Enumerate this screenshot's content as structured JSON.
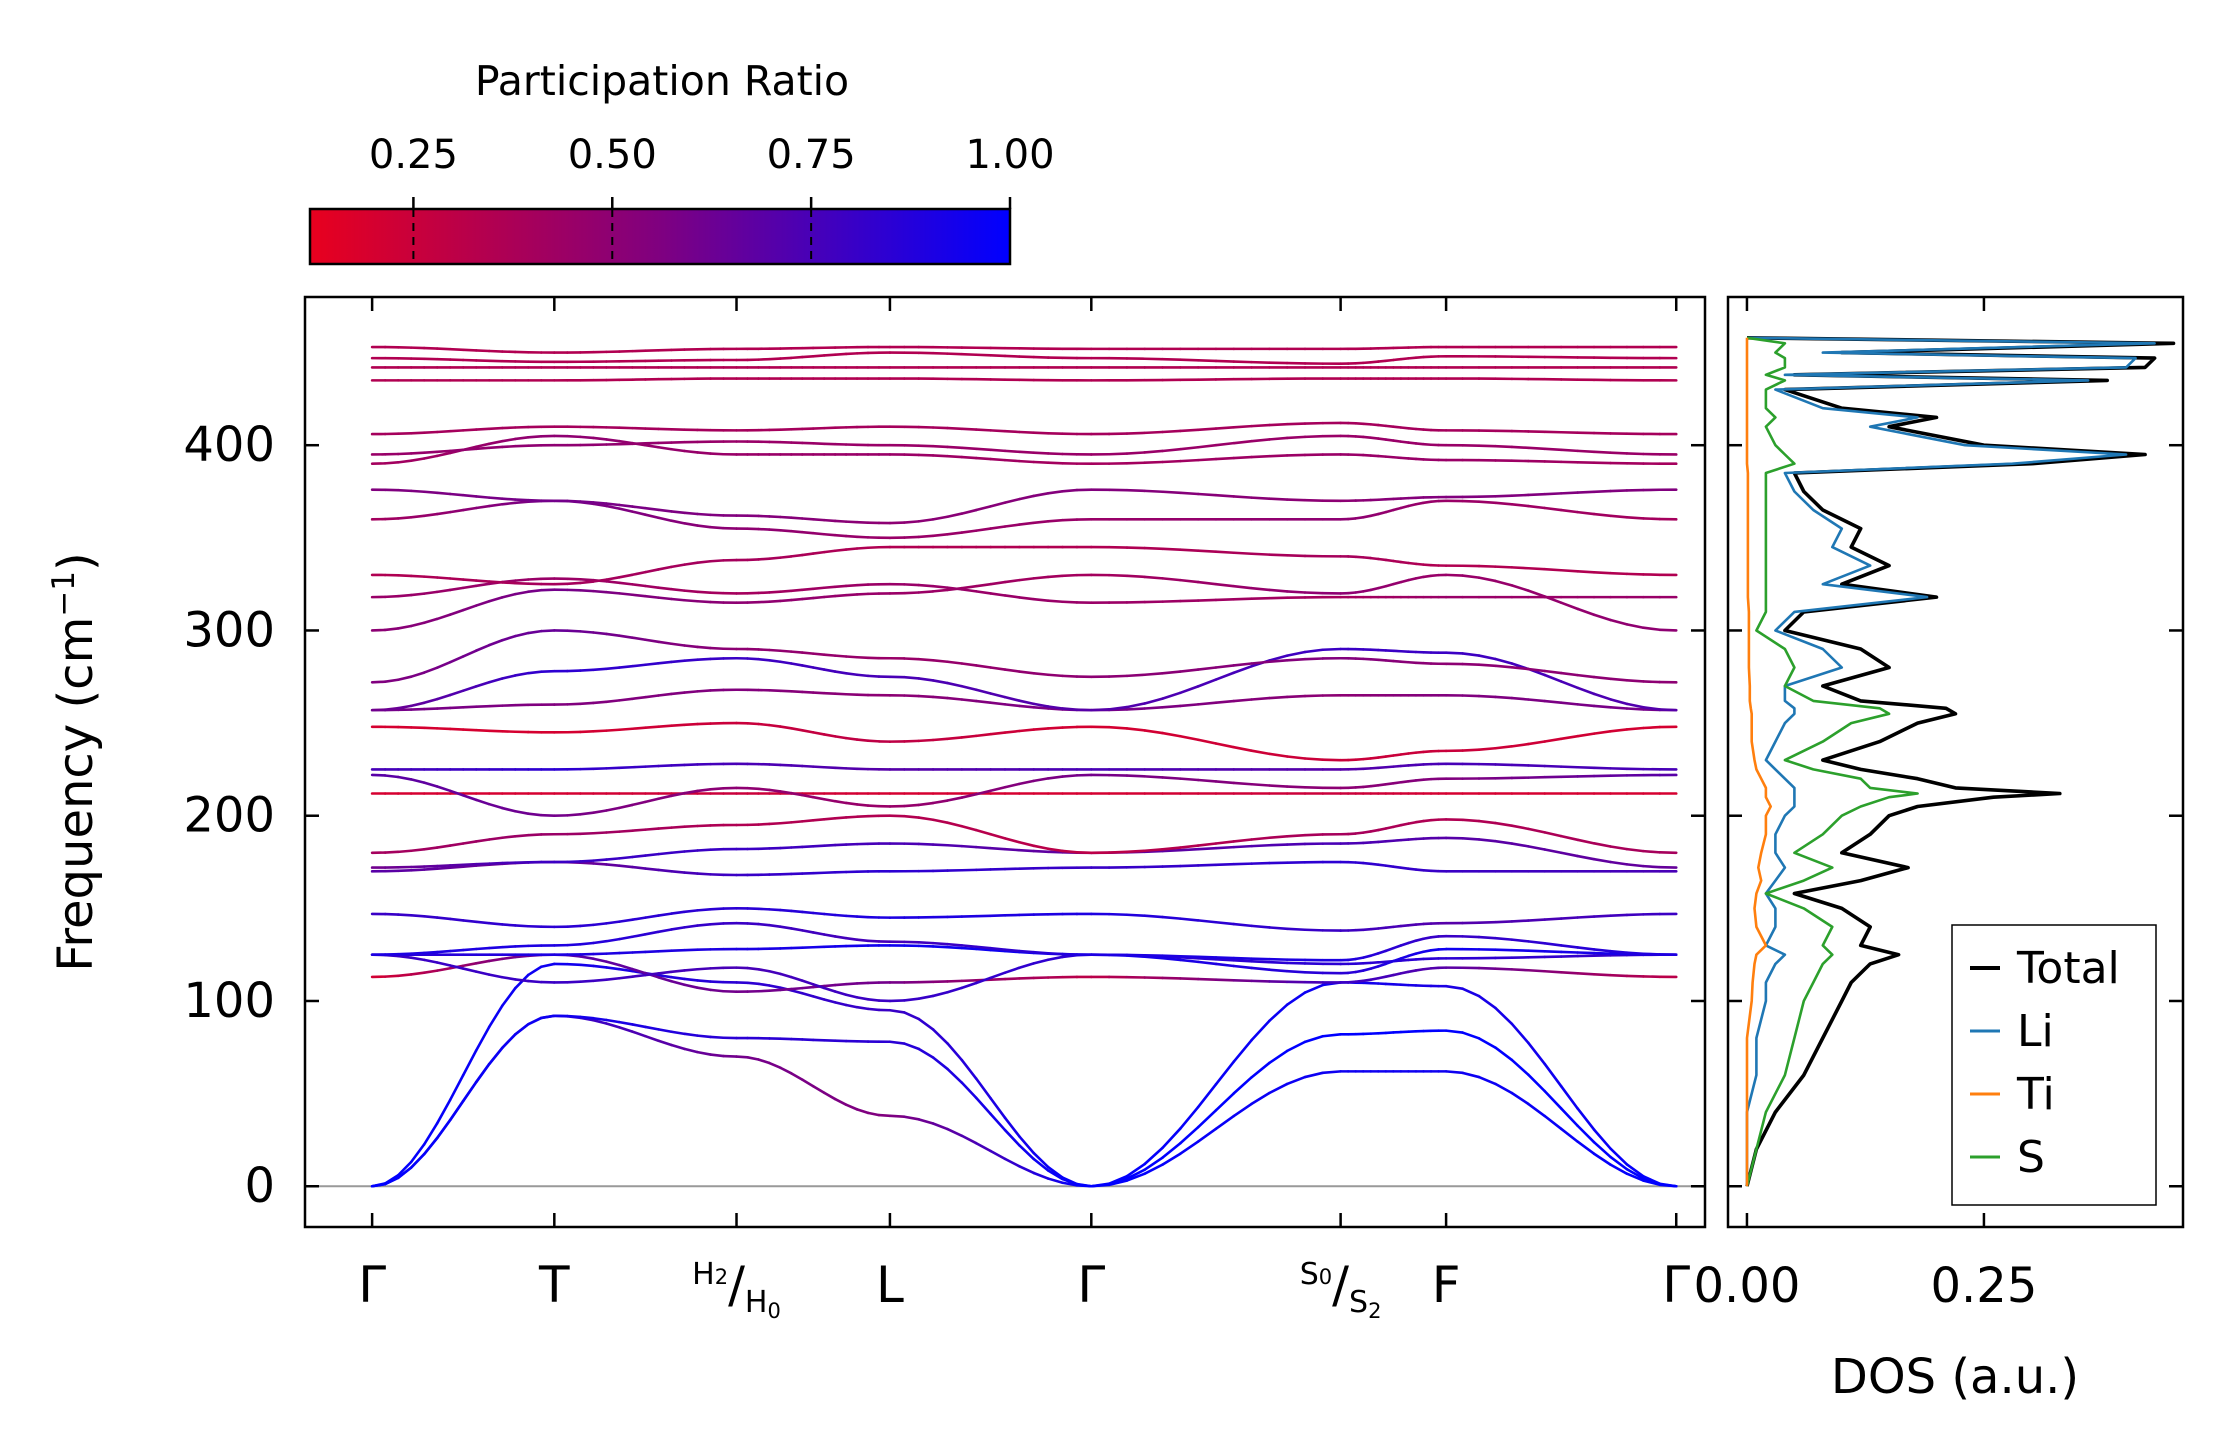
{
  "colorbar": {
    "title": "Participation Ratio",
    "ticks": [
      "0.25",
      "0.50",
      "0.75",
      "1.00"
    ],
    "tick_values": [
      0.25,
      0.5,
      0.75,
      1.0
    ],
    "range": [
      0.12,
      1.0
    ],
    "color_low": "#e8001e",
    "color_mid": "#7f0080",
    "color_high": "#0000ff"
  },
  "chart_data": [
    {
      "type": "line",
      "name": "phonon-band-structure",
      "ylabel_main": "Frequency (cm",
      "ylabel_sup": "−1",
      "ylabel_close": ")",
      "ylim": [
        -22,
        480
      ],
      "yticks": [
        0,
        100,
        200,
        300,
        400
      ],
      "ytick_labels": [
        "0",
        "100",
        "200",
        "300",
        "400"
      ],
      "xlim": [
        -0.35,
        6.95
      ],
      "q_labels": [
        {
          "x": 0,
          "kind": "plain",
          "text": "Γ"
        },
        {
          "x": 0.95,
          "kind": "plain",
          "text": "T"
        },
        {
          "x": 1.9,
          "kind": "split",
          "left": "H",
          "left_sub": "2",
          "right": "H",
          "right_sub": "0"
        },
        {
          "x": 2.7,
          "kind": "plain",
          "text": "L"
        },
        {
          "x": 3.75,
          "kind": "plain",
          "text": "Γ"
        },
        {
          "x": 5.05,
          "kind": "split",
          "left": "S",
          "left_sub": "0",
          "right": "S",
          "right_sub": "2"
        },
        {
          "x": 5.6,
          "kind": "plain",
          "text": "F"
        },
        {
          "x": 6.8,
          "kind": "plain",
          "text": "Γ"
        }
      ],
      "x": [
        0,
        0.95,
        1.9,
        2.7,
        3.75,
        5.05,
        5.6,
        6.8
      ],
      "bands": [
        {
          "y": [
            0,
            92,
            70,
            38,
            0,
            62,
            62,
            0
          ],
          "pr": [
            1.0,
            0.85,
            0.6,
            0.55,
            1.0,
            0.95,
            0.95,
            1.0
          ]
        },
        {
          "y": [
            0,
            92,
            80,
            78,
            0,
            82,
            84,
            0
          ],
          "pr": [
            1.0,
            0.95,
            0.85,
            0.85,
            1.0,
            1.0,
            1.0,
            1.0
          ]
        },
        {
          "y": [
            0,
            120,
            110,
            95,
            0,
            110,
            108,
            0
          ],
          "pr": [
            1.0,
            0.95,
            0.85,
            0.8,
            1.0,
            0.95,
            0.9,
            1.0
          ]
        },
        {
          "y": [
            113,
            125,
            105,
            110,
            113,
            110,
            118,
            113
          ],
          "pr": [
            0.2,
            0.7,
            0.6,
            0.6,
            0.3,
            0.8,
            0.7,
            0.3
          ]
        },
        {
          "y": [
            125,
            110,
            118,
            100,
            125,
            120,
            123,
            125
          ],
          "pr": [
            0.8,
            0.8,
            0.75,
            0.8,
            0.85,
            0.85,
            0.85,
            0.8
          ]
        },
        {
          "y": [
            125,
            125,
            128,
            130,
            125,
            115,
            128,
            125
          ],
          "pr": [
            0.85,
            0.9,
            0.9,
            0.95,
            0.95,
            0.85,
            0.95,
            0.9
          ]
        },
        {
          "y": [
            125,
            130,
            142,
            132,
            125,
            122,
            135,
            125
          ],
          "pr": [
            0.9,
            0.9,
            0.8,
            0.75,
            0.9,
            0.9,
            0.8,
            0.9
          ]
        },
        {
          "y": [
            147,
            140,
            150,
            145,
            147,
            138,
            142,
            147
          ],
          "pr": [
            0.8,
            0.85,
            0.85,
            0.9,
            0.9,
            0.8,
            0.7,
            0.8
          ]
        },
        {
          "y": [
            170,
            175,
            168,
            170,
            172,
            175,
            170,
            170
          ],
          "pr": [
            0.7,
            0.6,
            0.8,
            0.85,
            0.8,
            0.85,
            0.8,
            0.75
          ]
        },
        {
          "y": [
            172,
            175,
            182,
            185,
            180,
            185,
            188,
            172
          ],
          "pr": [
            0.6,
            0.8,
            0.8,
            0.75,
            0.65,
            0.75,
            0.7,
            0.65
          ]
        },
        {
          "y": [
            180,
            190,
            195,
            200,
            180,
            190,
            198,
            180
          ],
          "pr": [
            0.4,
            0.45,
            0.35,
            0.35,
            0.3,
            0.4,
            0.35,
            0.4
          ]
        },
        {
          "y": [
            212,
            212,
            212,
            212,
            212,
            212,
            212,
            212
          ],
          "pr": [
            0.2,
            0.2,
            0.25,
            0.2,
            0.2,
            0.25,
            0.2,
            0.2
          ]
        },
        {
          "y": [
            222,
            200,
            215,
            205,
            222,
            215,
            220,
            222
          ],
          "pr": [
            0.7,
            0.6,
            0.5,
            0.45,
            0.6,
            0.5,
            0.55,
            0.7
          ]
        },
        {
          "y": [
            225,
            225,
            228,
            225,
            225,
            225,
            228,
            225
          ],
          "pr": [
            0.75,
            0.85,
            0.75,
            0.7,
            0.75,
            0.7,
            0.75,
            0.75
          ]
        },
        {
          "y": [
            248,
            245,
            250,
            240,
            248,
            230,
            235,
            248
          ],
          "pr": [
            0.2,
            0.2,
            0.25,
            0.3,
            0.2,
            0.25,
            0.25,
            0.2
          ]
        },
        {
          "y": [
            257,
            260,
            268,
            265,
            257,
            265,
            265,
            257
          ],
          "pr": [
            0.6,
            0.55,
            0.55,
            0.5,
            0.6,
            0.5,
            0.55,
            0.6
          ]
        },
        {
          "y": [
            257,
            278,
            285,
            275,
            257,
            290,
            288,
            257
          ],
          "pr": [
            0.6,
            0.85,
            0.8,
            0.75,
            0.7,
            0.8,
            0.8,
            0.7
          ]
        },
        {
          "y": [
            272,
            300,
            290,
            285,
            275,
            285,
            282,
            272
          ],
          "pr": [
            0.55,
            0.65,
            0.5,
            0.45,
            0.5,
            0.55,
            0.5,
            0.5
          ]
        },
        {
          "y": [
            300,
            322,
            315,
            320,
            330,
            320,
            330,
            300
          ],
          "pr": [
            0.5,
            0.6,
            0.5,
            0.45,
            0.4,
            0.5,
            0.45,
            0.5
          ]
        },
        {
          "y": [
            318,
            328,
            320,
            325,
            315,
            318,
            318,
            318
          ],
          "pr": [
            0.45,
            0.45,
            0.4,
            0.45,
            0.45,
            0.4,
            0.45,
            0.45
          ]
        },
        {
          "y": [
            330,
            325,
            338,
            345,
            345,
            340,
            335,
            330
          ],
          "pr": [
            0.35,
            0.4,
            0.4,
            0.35,
            0.35,
            0.4,
            0.35,
            0.35
          ]
        },
        {
          "y": [
            360,
            370,
            355,
            350,
            360,
            360,
            370,
            360
          ],
          "pr": [
            0.4,
            0.6,
            0.5,
            0.45,
            0.45,
            0.5,
            0.45,
            0.4
          ]
        },
        {
          "y": [
            376,
            370,
            362,
            358,
            376,
            370,
            372,
            376
          ],
          "pr": [
            0.55,
            0.6,
            0.55,
            0.5,
            0.55,
            0.5,
            0.55,
            0.55
          ]
        },
        {
          "y": [
            390,
            405,
            395,
            395,
            390,
            395,
            392,
            390
          ],
          "pr": [
            0.4,
            0.5,
            0.45,
            0.45,
            0.4,
            0.45,
            0.45,
            0.4
          ]
        },
        {
          "y": [
            395,
            400,
            402,
            400,
            395,
            405,
            400,
            395
          ],
          "pr": [
            0.45,
            0.5,
            0.45,
            0.45,
            0.45,
            0.45,
            0.45,
            0.45
          ]
        },
        {
          "y": [
            406,
            410,
            408,
            410,
            406,
            412,
            408,
            406
          ],
          "pr": [
            0.4,
            0.4,
            0.4,
            0.4,
            0.4,
            0.4,
            0.4,
            0.4
          ]
        },
        {
          "y": [
            435,
            435,
            436,
            436,
            435,
            436,
            436,
            435
          ],
          "pr": [
            0.35,
            0.35,
            0.35,
            0.35,
            0.35,
            0.35,
            0.35,
            0.35
          ]
        },
        {
          "y": [
            442,
            442,
            442,
            442,
            442,
            442,
            442,
            442
          ],
          "pr": [
            0.35,
            0.35,
            0.35,
            0.35,
            0.35,
            0.35,
            0.35,
            0.35
          ]
        },
        {
          "y": [
            447,
            445,
            446,
            450,
            447,
            444,
            448,
            447
          ],
          "pr": [
            0.35,
            0.35,
            0.35,
            0.35,
            0.35,
            0.35,
            0.35,
            0.35
          ]
        },
        {
          "y": [
            453,
            450,
            452,
            453,
            452,
            452,
            453,
            453
          ],
          "pr": [
            0.35,
            0.35,
            0.35,
            0.35,
            0.35,
            0.35,
            0.35,
            0.35
          ]
        }
      ]
    },
    {
      "type": "line",
      "name": "density-of-states",
      "xlabel": "DOS (a.u.)",
      "xlim": [
        -0.02,
        0.46
      ],
      "xticks": [
        0.0,
        0.25
      ],
      "xtick_labels": [
        "0.00",
        "0.25"
      ],
      "ylim": [
        -22,
        480
      ],
      "legend_position": "lower-right",
      "freq": [
        0,
        20,
        40,
        60,
        80,
        100,
        110,
        120,
        125,
        130,
        140,
        150,
        158,
        165,
        172,
        180,
        190,
        200,
        205,
        210,
        212,
        215,
        220,
        225,
        230,
        240,
        250,
        255,
        258,
        262,
        270,
        280,
        290,
        300,
        310,
        318,
        325,
        335,
        345,
        355,
        365,
        375,
        385,
        390,
        395,
        400,
        410,
        415,
        420,
        430,
        435,
        438,
        442,
        447,
        450,
        455,
        458
      ],
      "series": [
        {
          "name": "Total",
          "color": "#000000",
          "values": [
            0.0,
            0.01,
            0.03,
            0.06,
            0.08,
            0.1,
            0.11,
            0.13,
            0.16,
            0.12,
            0.13,
            0.1,
            0.05,
            0.12,
            0.17,
            0.1,
            0.13,
            0.15,
            0.18,
            0.26,
            0.33,
            0.22,
            0.18,
            0.12,
            0.08,
            0.14,
            0.18,
            0.22,
            0.21,
            0.12,
            0.08,
            0.15,
            0.12,
            0.04,
            0.06,
            0.2,
            0.1,
            0.15,
            0.11,
            0.12,
            0.08,
            0.06,
            0.05,
            0.3,
            0.42,
            0.25,
            0.15,
            0.2,
            0.1,
            0.04,
            0.38,
            0.05,
            0.42,
            0.43,
            0.1,
            0.45,
            0.0
          ]
        },
        {
          "name": "Li",
          "color": "#1f77b4",
          "values": [
            0.0,
            0.0,
            0.0,
            0.01,
            0.01,
            0.02,
            0.02,
            0.03,
            0.04,
            0.02,
            0.03,
            0.03,
            0.02,
            0.03,
            0.04,
            0.03,
            0.03,
            0.04,
            0.05,
            0.05,
            0.05,
            0.05,
            0.04,
            0.03,
            0.02,
            0.03,
            0.04,
            0.05,
            0.05,
            0.04,
            0.04,
            0.1,
            0.08,
            0.03,
            0.05,
            0.19,
            0.08,
            0.13,
            0.09,
            0.1,
            0.07,
            0.05,
            0.04,
            0.28,
            0.4,
            0.23,
            0.13,
            0.18,
            0.08,
            0.03,
            0.36,
            0.04,
            0.4,
            0.41,
            0.08,
            0.43,
            0.0
          ]
        },
        {
          "name": "Ti",
          "color": "#ff7f0e",
          "values": [
            0.0,
            0.0,
            0.0,
            0.0,
            0.0,
            0.005,
            0.006,
            0.008,
            0.01,
            0.02,
            0.01,
            0.008,
            0.01,
            0.015,
            0.012,
            0.015,
            0.02,
            0.02,
            0.025,
            0.02,
            0.02,
            0.02,
            0.015,
            0.01,
            0.008,
            0.005,
            0.005,
            0.005,
            0.004,
            0.003,
            0.003,
            0.002,
            0.002,
            0.002,
            0.002,
            0.001,
            0.001,
            0.001,
            0.001,
            0.001,
            0.001,
            0.001,
            0.001,
            0.0,
            0.0,
            0.0,
            0.0,
            0.0,
            0.0,
            0.0,
            0.0,
            0.0,
            0.0,
            0.0,
            0.0,
            0.0,
            0.0
          ]
        },
        {
          "name": "S",
          "color": "#2ca02c",
          "values": [
            0.0,
            0.01,
            0.02,
            0.04,
            0.05,
            0.06,
            0.07,
            0.08,
            0.09,
            0.08,
            0.09,
            0.06,
            0.02,
            0.06,
            0.09,
            0.05,
            0.08,
            0.1,
            0.12,
            0.15,
            0.18,
            0.13,
            0.12,
            0.07,
            0.04,
            0.08,
            0.11,
            0.15,
            0.14,
            0.07,
            0.04,
            0.05,
            0.04,
            0.01,
            0.02,
            0.02,
            0.02,
            0.02,
            0.02,
            0.02,
            0.02,
            0.02,
            0.02,
            0.05,
            0.04,
            0.03,
            0.02,
            0.03,
            0.02,
            0.02,
            0.04,
            0.02,
            0.04,
            0.04,
            0.03,
            0.04,
            0.0
          ]
        }
      ]
    }
  ]
}
